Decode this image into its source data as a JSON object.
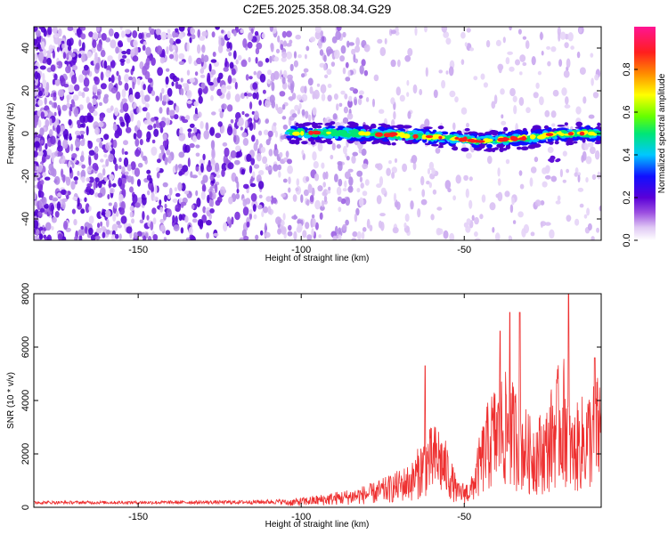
{
  "title": "C2E5.2025.358.08.34.G29",
  "chart_data": [
    {
      "type": "heatmap",
      "title": "C2E5.2025.358.08.34.G29",
      "xlabel": "Height of straight line (km)",
      "ylabel": "Frequency (Hz)",
      "xlim": [
        -182,
        -8
      ],
      "ylim": [
        -50,
        50
      ],
      "xticks": [
        -150,
        -100,
        -50
      ],
      "yticks": [
        -40,
        -20,
        0,
        20,
        40
      ],
      "colorbar": {
        "label": "Normalized spectral amplitude",
        "range": [
          0,
          1
        ],
        "ticks": [
          0.0,
          0.2,
          0.4,
          0.6,
          0.8
        ],
        "colors": [
          "#ffffff",
          "#e0c8f4",
          "#9b4ee0",
          "#5a00d8",
          "#1010ff",
          "#00c8ff",
          "#00e676",
          "#66ff00",
          "#ffff00",
          "#ff8c00",
          "#ff1e1e",
          "#ff1493"
        ]
      },
      "ridge": {
        "start_km": -104,
        "end_km": -8,
        "freq_points": [
          [
            -104,
            0.5
          ],
          [
            -80,
            0
          ],
          [
            -60,
            -1.5
          ],
          [
            -45,
            -3.5
          ],
          [
            -30,
            -2
          ],
          [
            -20,
            0
          ],
          [
            -8,
            0
          ]
        ]
      }
    },
    {
      "type": "line",
      "xlabel": "Height of straight line (km)",
      "ylabel": "SNR (10 * v/v)",
      "xlim": [
        -182,
        -8
      ],
      "ylim": [
        0,
        8000
      ],
      "xticks": [
        -150,
        -100,
        -50
      ],
      "yticks": [
        0,
        2000,
        4000,
        6000,
        8000
      ],
      "series": [
        {
          "name": "SNR",
          "color": "#ee3030",
          "envelope": [
            [
              -182,
              180
            ],
            [
              -150,
              180
            ],
            [
              -120,
              200
            ],
            [
              -105,
              250
            ],
            [
              -95,
              400
            ],
            [
              -85,
              600
            ],
            [
              -78,
              800
            ],
            [
              -72,
              1100
            ],
            [
              -66,
              1500
            ],
            [
              -62,
              2500
            ],
            [
              -58,
              2800
            ],
            [
              -55,
              2000
            ],
            [
              -52,
              800
            ],
            [
              -48,
              900
            ],
            [
              -45,
              2500
            ],
            [
              -42,
              3800
            ],
            [
              -38,
              4500
            ],
            [
              -34,
              4000
            ],
            [
              -30,
              3000
            ],
            [
              -25,
              3200
            ],
            [
              -22,
              4500
            ],
            [
              -19,
              5000
            ],
            [
              -17,
              3000
            ],
            [
              -15,
              3500
            ],
            [
              -12,
              3900
            ],
            [
              -8,
              4500
            ]
          ],
          "peaks": [
            [
              -62,
              5300
            ],
            [
              -39,
              6600
            ],
            [
              -36,
              7300
            ],
            [
              -33,
              7300
            ],
            [
              -18,
              8000
            ],
            [
              -10,
              5600
            ]
          ]
        }
      ]
    }
  ]
}
